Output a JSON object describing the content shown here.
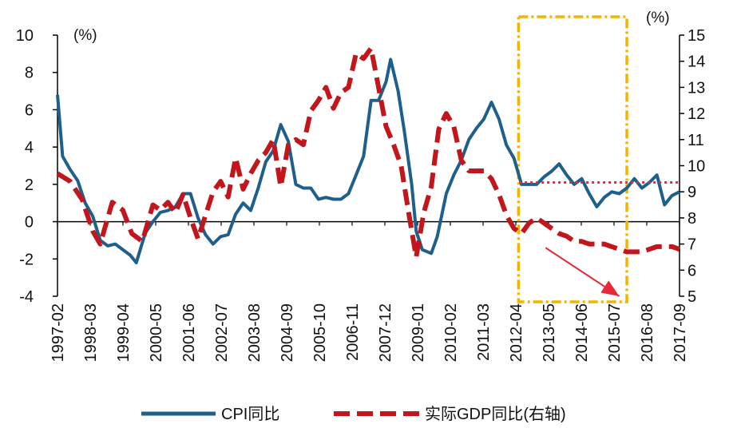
{
  "chart_data": {
    "type": "line",
    "x_categories": [
      "1997-02",
      "1998-03",
      "1999-04",
      "2000-05",
      "2001-06",
      "2002-07",
      "2003-08",
      "2004-09",
      "2005-10",
      "2006-11",
      "2007-12",
      "2009-01",
      "2010-02",
      "2011-03",
      "2012-04",
      "2013-05",
      "2014-06",
      "2015-07",
      "2016-08",
      "2017-09"
    ],
    "left_axis": {
      "unit": "(%)",
      "min": -4,
      "max": 10,
      "ticks": [
        -4,
        -2,
        0,
        2,
        4,
        6,
        8,
        10
      ]
    },
    "right_axis": {
      "unit": "(%)",
      "min": 5,
      "max": 15,
      "ticks": [
        5,
        6,
        7,
        8,
        9,
        10,
        11,
        12,
        13,
        14,
        15
      ]
    },
    "colors": {
      "cpi": "#1f5f8b",
      "gdp": "#c0161c",
      "box": "#f2b400",
      "arrow": "#e8283a",
      "ref_line": "#e8283a"
    },
    "series": [
      {
        "name": "CPI同比",
        "axis": "left",
        "style": "solid",
        "points": [
          [
            1997.08,
            6.8
          ],
          [
            1997.25,
            3.5
          ],
          [
            1997.5,
            2.8
          ],
          [
            1997.75,
            2.2
          ],
          [
            1998.0,
            1.0
          ],
          [
            1998.25,
            0.3
          ],
          [
            1998.5,
            -1.0
          ],
          [
            1998.75,
            -1.3
          ],
          [
            1999.0,
            -1.2
          ],
          [
            1999.25,
            -1.5
          ],
          [
            1999.5,
            -1.8
          ],
          [
            1999.7,
            -2.2
          ],
          [
            2000.0,
            -0.6
          ],
          [
            2000.25,
            0.0
          ],
          [
            2000.5,
            0.5
          ],
          [
            2000.75,
            0.6
          ],
          [
            2001.0,
            0.8
          ],
          [
            2001.25,
            1.5
          ],
          [
            2001.5,
            1.5
          ],
          [
            2001.75,
            0.2
          ],
          [
            2002.0,
            -0.7
          ],
          [
            2002.25,
            -1.2
          ],
          [
            2002.5,
            -0.8
          ],
          [
            2002.75,
            -0.7
          ],
          [
            2003.0,
            0.4
          ],
          [
            2003.25,
            1.0
          ],
          [
            2003.5,
            0.6
          ],
          [
            2003.75,
            1.8
          ],
          [
            2004.0,
            3.2
          ],
          [
            2004.25,
            3.8
          ],
          [
            2004.5,
            5.2
          ],
          [
            2004.75,
            4.3
          ],
          [
            2005.0,
            2.0
          ],
          [
            2005.25,
            1.8
          ],
          [
            2005.5,
            1.8
          ],
          [
            2005.75,
            1.2
          ],
          [
            2006.0,
            1.3
          ],
          [
            2006.25,
            1.2
          ],
          [
            2006.5,
            1.2
          ],
          [
            2006.75,
            1.5
          ],
          [
            2007.0,
            2.5
          ],
          [
            2007.25,
            3.5
          ],
          [
            2007.5,
            6.5
          ],
          [
            2007.75,
            6.5
          ],
          [
            2008.0,
            7.5
          ],
          [
            2008.15,
            8.7
          ],
          [
            2008.4,
            7.0
          ],
          [
            2008.6,
            4.9
          ],
          [
            2008.85,
            2.0
          ],
          [
            2009.0,
            -0.5
          ],
          [
            2009.2,
            -1.5
          ],
          [
            2009.5,
            -1.7
          ],
          [
            2009.7,
            -0.8
          ],
          [
            2010.0,
            1.5
          ],
          [
            2010.25,
            2.5
          ],
          [
            2010.5,
            3.3
          ],
          [
            2010.75,
            4.4
          ],
          [
            2011.0,
            5.0
          ],
          [
            2011.25,
            5.5
          ],
          [
            2011.5,
            6.4
          ],
          [
            2011.75,
            5.5
          ],
          [
            2012.0,
            4.1
          ],
          [
            2012.25,
            3.4
          ],
          [
            2012.5,
            2.0
          ],
          [
            2012.75,
            2.0
          ],
          [
            2013.0,
            2.0
          ],
          [
            2013.25,
            2.4
          ],
          [
            2013.5,
            2.7
          ],
          [
            2013.75,
            3.1
          ],
          [
            2014.0,
            2.5
          ],
          [
            2014.25,
            2.0
          ],
          [
            2014.5,
            2.3
          ],
          [
            2014.75,
            1.5
          ],
          [
            2015.0,
            0.8
          ],
          [
            2015.25,
            1.3
          ],
          [
            2015.5,
            1.6
          ],
          [
            2015.75,
            1.5
          ],
          [
            2016.0,
            1.8
          ],
          [
            2016.25,
            2.3
          ],
          [
            2016.5,
            1.8
          ],
          [
            2016.75,
            2.1
          ],
          [
            2017.0,
            2.5
          ],
          [
            2017.25,
            0.9
          ],
          [
            2017.5,
            1.4
          ],
          [
            2017.75,
            1.6
          ]
        ]
      },
      {
        "name": "实际GDP同比(右轴)",
        "axis": "right",
        "style": "dashed",
        "points": [
          [
            1997.08,
            9.7
          ],
          [
            1997.5,
            9.4
          ],
          [
            1997.9,
            8.7
          ],
          [
            1998.25,
            7.5
          ],
          [
            1998.5,
            7.0
          ],
          [
            1998.9,
            8.6
          ],
          [
            1999.25,
            8.3
          ],
          [
            1999.55,
            7.4
          ],
          [
            1999.9,
            7.1
          ],
          [
            2000.25,
            8.5
          ],
          [
            2000.5,
            8.3
          ],
          [
            2000.75,
            8.6
          ],
          [
            2001.0,
            8.2
          ],
          [
            2001.25,
            8.9
          ],
          [
            2001.5,
            8.0
          ],
          [
            2001.75,
            7.2
          ],
          [
            2002.0,
            8.1
          ],
          [
            2002.25,
            9.0
          ],
          [
            2002.5,
            9.4
          ],
          [
            2002.75,
            8.8
          ],
          [
            2003.0,
            10.3
          ],
          [
            2003.25,
            9.1
          ],
          [
            2003.5,
            9.7
          ],
          [
            2003.75,
            10.2
          ],
          [
            2004.0,
            10.5
          ],
          [
            2004.25,
            11.0
          ],
          [
            2004.5,
            9.2
          ],
          [
            2004.75,
            10.8
          ],
          [
            2005.0,
            11.0
          ],
          [
            2005.25,
            10.8
          ],
          [
            2005.5,
            12.1
          ],
          [
            2005.75,
            12.5
          ],
          [
            2006.0,
            13.0
          ],
          [
            2006.25,
            12.2
          ],
          [
            2006.5,
            12.8
          ],
          [
            2006.75,
            13.0
          ],
          [
            2007.0,
            14.3
          ],
          [
            2007.25,
            14.1
          ],
          [
            2007.5,
            14.5
          ],
          [
            2007.75,
            13.0
          ],
          [
            2008.0,
            11.5
          ],
          [
            2008.25,
            10.8
          ],
          [
            2008.5,
            10.0
          ],
          [
            2008.75,
            8.2
          ],
          [
            2009.0,
            6.5
          ],
          [
            2009.25,
            8.2
          ],
          [
            2009.5,
            9.2
          ],
          [
            2009.75,
            11.4
          ],
          [
            2010.0,
            12.0
          ],
          [
            2010.25,
            11.5
          ],
          [
            2010.5,
            10.2
          ],
          [
            2010.75,
            9.8
          ],
          [
            2011.0,
            9.8
          ],
          [
            2011.25,
            9.8
          ],
          [
            2011.5,
            9.5
          ],
          [
            2011.75,
            8.9
          ],
          [
            2012.0,
            8.1
          ],
          [
            2012.25,
            7.6
          ],
          [
            2012.5,
            7.4
          ],
          [
            2012.75,
            7.8
          ],
          [
            2013.0,
            8.0
          ],
          [
            2013.25,
            7.8
          ],
          [
            2013.5,
            7.6
          ],
          [
            2013.75,
            7.4
          ],
          [
            2014.0,
            7.3
          ],
          [
            2014.25,
            7.1
          ],
          [
            2014.5,
            7.1
          ],
          [
            2014.75,
            7.0
          ],
          [
            2015.0,
            7.0
          ],
          [
            2015.25,
            7.0
          ],
          [
            2015.5,
            6.9
          ],
          [
            2015.75,
            6.8
          ],
          [
            2016.0,
            6.7
          ],
          [
            2016.25,
            6.7
          ],
          [
            2016.5,
            6.7
          ],
          [
            2016.75,
            6.8
          ],
          [
            2017.0,
            6.9
          ],
          [
            2017.5,
            6.9
          ],
          [
            2017.75,
            6.8
          ]
        ]
      }
    ],
    "annotations": [
      {
        "type": "horizontal_dotted_line",
        "axis": "left",
        "y": 2.1,
        "x_from": 2012.42,
        "x_to": 2017.78
      },
      {
        "type": "dash_dot_box",
        "x_from": 2012.4,
        "x_to": 2016.0
      },
      {
        "type": "arrow",
        "from": [
          2013.3,
          -1.4
        ],
        "to": [
          2015.75,
          -4.0
        ]
      }
    ],
    "legend": {
      "placement": "bottom",
      "entries": [
        "CPI同比",
        "实际GDP同比(右轴)"
      ]
    },
    "grid": false
  }
}
